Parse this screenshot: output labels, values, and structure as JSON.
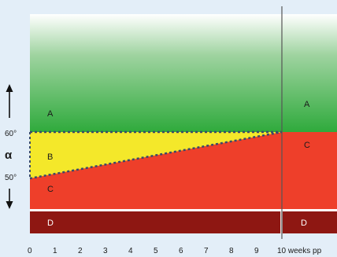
{
  "colors": {
    "background": "#e3eef8",
    "zone_a_green": "#2faa3c",
    "zone_a_fade": "#ffffff",
    "zone_b_yellow": "#f4e82a",
    "zone_c_red": "#ee3f2a",
    "zone_d_darkred": "#8e1712",
    "dotted_line": "#3a4a6a",
    "vertical_line": "#555555"
  },
  "zones": {
    "a_left": "A",
    "a_right": "A",
    "b_left": "B",
    "c_left": "C",
    "c_right": "C",
    "d_left": "D",
    "d_right": "D"
  },
  "y_axis": {
    "symbol": "α",
    "tick_high": "60°",
    "tick_low": "50°"
  },
  "x_axis": {
    "ticks": [
      "0",
      "1",
      "2",
      "3",
      "4",
      "5",
      "6",
      "7",
      "8",
      "9"
    ],
    "last_tick": "10 weeks pp"
  },
  "boundary": {
    "start_week": 0,
    "end_week": 10,
    "start_angle": 50,
    "end_angle": 60,
    "upper_angle": 60
  }
}
